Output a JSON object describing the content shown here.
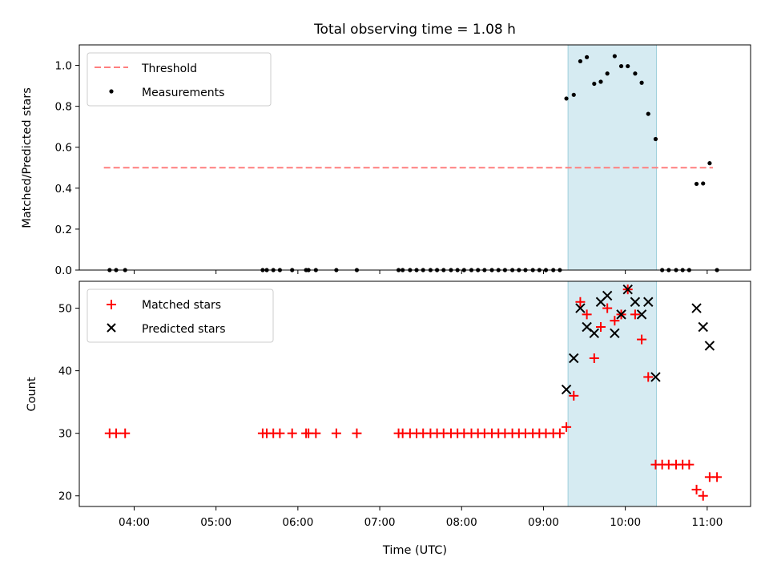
{
  "chart_data": {
    "title": "Total observing time = 1.08 h",
    "shared_xlabel": "Time (UTC)",
    "x_ticks": [
      "04:00",
      "05:00",
      "06:00",
      "07:00",
      "08:00",
      "09:00",
      "10:00",
      "11:00"
    ],
    "x_tick_hours": [
      4,
      5,
      6,
      7,
      8,
      9,
      10,
      11
    ],
    "x_range_hours": [
      3.33,
      11.53
    ],
    "highlight_span_hours": [
      9.3,
      10.38
    ],
    "highlight_color": "#add8e6",
    "panels": [
      {
        "type": "scatter",
        "ylabel": "Matched/Predicted stars",
        "ylim": [
          0,
          1.1
        ],
        "yticks": [
          "0.0",
          "0.2",
          "0.4",
          "0.6",
          "0.8",
          "1.0"
        ],
        "ytick_values": [
          0,
          0.2,
          0.4,
          0.6,
          0.8,
          1.0
        ],
        "legend_position": "top-left",
        "threshold": {
          "name": "Threshold",
          "value": 0.5,
          "x_range_hours": [
            3.63,
            11.07
          ],
          "color": "#ff7f7f"
        },
        "series": [
          {
            "name": "Measurements",
            "marker": "dot",
            "color": "#000000",
            "x_hours": [
              3.7,
              3.78,
              3.89,
              5.57,
              5.62,
              5.7,
              5.78,
              5.93,
              6.1,
              6.13,
              6.22,
              6.47,
              6.72,
              7.23,
              7.28,
              7.37,
              7.45,
              7.53,
              7.62,
              7.7,
              7.78,
              7.87,
              7.95,
              8.03,
              8.12,
              8.2,
              8.28,
              8.37,
              8.45,
              8.53,
              8.62,
              8.7,
              8.78,
              8.87,
              8.95,
              9.03,
              9.12,
              9.2,
              9.28,
              9.37,
              9.45,
              9.53,
              9.62,
              9.7,
              9.78,
              9.87,
              9.95,
              10.03,
              10.12,
              10.2,
              10.28,
              10.37,
              10.45,
              10.53,
              10.62,
              10.7,
              10.78,
              10.87,
              10.95,
              11.03,
              11.12
            ],
            "y": [
              0,
              0,
              0,
              0,
              0,
              0,
              0,
              0,
              0,
              0,
              0,
              0,
              0,
              0,
              0,
              0,
              0,
              0,
              0,
              0,
              0,
              0,
              0,
              0,
              0,
              0,
              0,
              0,
              0,
              0,
              0,
              0,
              0,
              0,
              0,
              0,
              0,
              0,
              0.838,
              0.856,
              1.02,
              1.04,
              0.91,
              0.92,
              0.96,
              1.045,
              0.996,
              0.996,
              0.96,
              0.915,
              0.763,
              0.64,
              0,
              0,
              0,
              0,
              0,
              0.421,
              0.423,
              0.522,
              0
            ]
          }
        ]
      },
      {
        "type": "scatter",
        "ylabel": "Count",
        "ylim": [
          18.3,
          54.3
        ],
        "yticks": [
          "20",
          "30",
          "40",
          "50"
        ],
        "ytick_values": [
          20,
          30,
          40,
          50
        ],
        "legend_position": "top-left",
        "series": [
          {
            "name": "Matched stars",
            "marker": "plus",
            "color": "#ff0000",
            "x_hours": [
              3.7,
              3.78,
              3.89,
              5.57,
              5.62,
              5.7,
              5.78,
              5.93,
              6.1,
              6.13,
              6.22,
              6.47,
              6.72,
              7.23,
              7.28,
              7.37,
              7.45,
              7.53,
              7.62,
              7.7,
              7.78,
              7.87,
              7.95,
              8.03,
              8.12,
              8.2,
              8.28,
              8.37,
              8.45,
              8.53,
              8.62,
              8.7,
              8.78,
              8.87,
              8.95,
              9.03,
              9.12,
              9.2,
              9.28,
              9.37,
              9.45,
              9.53,
              9.62,
              9.7,
              9.78,
              9.87,
              9.95,
              10.03,
              10.12,
              10.2,
              10.28,
              10.37,
              10.45,
              10.53,
              10.62,
              10.7,
              10.78,
              10.87,
              10.95,
              11.03,
              11.12
            ],
            "y": [
              30,
              30,
              30,
              30,
              30,
              30,
              30,
              30,
              30,
              30,
              30,
              30,
              30,
              30,
              30,
              30,
              30,
              30,
              30,
              30,
              30,
              30,
              30,
              30,
              30,
              30,
              30,
              30,
              30,
              30,
              30,
              30,
              30,
              30,
              30,
              30,
              30,
              30,
              31,
              36,
              51,
              49,
              42,
              47,
              50,
              48,
              49,
              53,
              49,
              45,
              39,
              25,
              25,
              25,
              25,
              25,
              25,
              21,
              20,
              23,
              23
            ]
          },
          {
            "name": "Predicted stars",
            "marker": "x",
            "color": "#000000",
            "x_hours": [
              9.28,
              9.37,
              9.45,
              9.53,
              9.62,
              9.7,
              9.78,
              9.87,
              9.95,
              10.03,
              10.12,
              10.2,
              10.28,
              10.37,
              10.87,
              10.95,
              11.03
            ],
            "y": [
              37,
              42,
              50,
              47,
              46,
              51,
              52,
              46,
              49,
              53,
              51,
              49,
              51,
              39,
              50,
              47,
              44
            ]
          }
        ]
      }
    ]
  }
}
